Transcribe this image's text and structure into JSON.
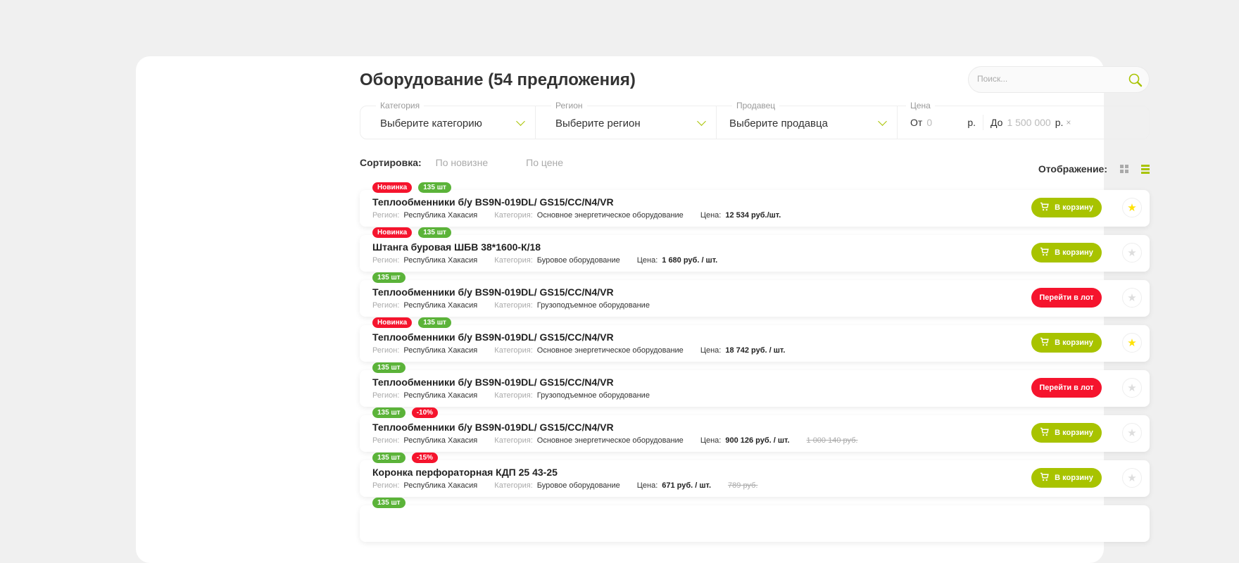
{
  "header": {
    "title": "Оборудование (54 предложения)",
    "search_placeholder": "Поиск..."
  },
  "filters": {
    "category": {
      "label": "Категория",
      "value": "Выберите категорию"
    },
    "region": {
      "label": "Регион",
      "value": "Выберите регион"
    },
    "seller": {
      "label": "Продавец",
      "value": "Выберите продавца"
    },
    "price": {
      "label": "Цена",
      "from_label": "От",
      "from_value": "0",
      "to_label": "До",
      "to_value": "1 500 000",
      "currency": "р.",
      "clear": "×"
    }
  },
  "sort": {
    "label": "Сортировка:",
    "options": [
      "По новизне",
      "По цене"
    ]
  },
  "display": {
    "label": "Отображение:",
    "active": "list"
  },
  "colors": {
    "accent": "#a8c300",
    "red": "#f5142d",
    "green": "#5bb339"
  },
  "meta_labels": {
    "region": "Регион:",
    "category": "Категория:",
    "price": "Цена:"
  },
  "items": [
    {
      "badges": [
        {
          "text": "Новинка",
          "color": "red"
        },
        {
          "text": "135 шт",
          "color": "green"
        }
      ],
      "title": "Теплообменники б/у BS9N-019DL/ GS15/CC/N4/VR",
      "region": "Республика Хакасия",
      "category": "Основное энергетическое оборудование",
      "price": "12 534 руб./шт.",
      "old_price": "",
      "action": "В корзину",
      "action_type": "cart",
      "favorite": true
    },
    {
      "badges": [
        {
          "text": "Новинка",
          "color": "red"
        },
        {
          "text": "135 шт",
          "color": "green"
        }
      ],
      "title": "Штанга буровая ШБВ 38*1600-К/18",
      "region": "Республика Хакасия",
      "category": "Буровое оборудование",
      "price": "1 680 руб. / шт.",
      "old_price": "",
      "action": "В корзину",
      "action_type": "cart",
      "favorite": false
    },
    {
      "badges": [
        {
          "text": "135 шт",
          "color": "green"
        }
      ],
      "title": "Теплообменники б/у BS9N-019DL/ GS15/CC/N4/VR",
      "region": "Республика Хакасия",
      "category": "Грузоподъемное оборудование",
      "price": "",
      "old_price": "",
      "action": "Перейти в лот",
      "action_type": "lot",
      "favorite": false
    },
    {
      "badges": [
        {
          "text": "Новинка",
          "color": "red"
        },
        {
          "text": "135 шт",
          "color": "green"
        }
      ],
      "title": "Теплообменники б/у BS9N-019DL/ GS15/CC/N4/VR",
      "region": "Республика Хакасия",
      "category": "Основное энергетическое оборудование",
      "price": "18 742 руб. / шт.",
      "old_price": "",
      "action": "В корзину",
      "action_type": "cart",
      "favorite": true
    },
    {
      "badges": [
        {
          "text": "135 шт",
          "color": "green"
        }
      ],
      "title": "Теплообменники б/у BS9N-019DL/ GS15/CC/N4/VR",
      "region": "Республика Хакасия",
      "category": "Грузоподъемное оборудование",
      "price": "",
      "old_price": "",
      "action": "Перейти в лот",
      "action_type": "lot",
      "favorite": false
    },
    {
      "badges": [
        {
          "text": "135 шт",
          "color": "green"
        },
        {
          "text": "-10%",
          "color": "red"
        }
      ],
      "title": "Теплообменники б/у BS9N-019DL/ GS15/CC/N4/VR",
      "region": "Республика Хакасия",
      "category": "Основное энергетическое оборудование",
      "price": "900 126 руб. / шт.",
      "old_price": "1 000 140 руб.",
      "action": "В корзину",
      "action_type": "cart",
      "favorite": false
    },
    {
      "badges": [
        {
          "text": "135 шт",
          "color": "green"
        },
        {
          "text": "-15%",
          "color": "red"
        }
      ],
      "title": "Коронка перфораторная КДП 25 43-25",
      "region": "Республика Хакасия",
      "category": "Буровое оборудование",
      "price": "671 руб. / шт.",
      "old_price": "789 руб.",
      "action": "В корзину",
      "action_type": "cart",
      "favorite": false
    },
    {
      "badges": [
        {
          "text": "135 шт",
          "color": "green"
        }
      ],
      "title": "",
      "region": "",
      "category": "",
      "price": "",
      "old_price": "",
      "action": "",
      "action_type": "",
      "favorite": false
    }
  ]
}
